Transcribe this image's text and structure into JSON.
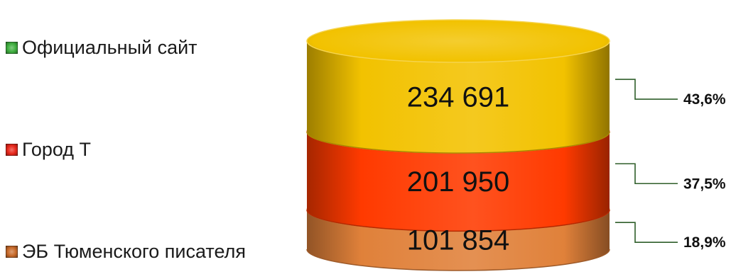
{
  "chart_data": {
    "type": "stacked-cylinder",
    "title": "",
    "series": [
      {
        "name": "ЭБ Тюменского писателя",
        "value": 101854,
        "value_label": "101 854",
        "percent_label": "18,9%",
        "color": "#e0813a"
      },
      {
        "name": "Город Т",
        "value": 201950,
        "value_label": "201 950",
        "percent_label": "37,5%",
        "color": "#ff3a00"
      },
      {
        "name": "Официальный сайт",
        "value": 234691,
        "value_label": "234 691",
        "percent_label": "43,6%",
        "color": "#f2c200"
      }
    ],
    "legend": {
      "placement": "left",
      "items": [
        {
          "label": "Официальный сайт",
          "color": "#3fae3f"
        },
        {
          "label": "Город Т",
          "color": "#e8281c"
        },
        {
          "label": "ЭБ Тюменского писателя",
          "color": "#c86a2a"
        }
      ]
    },
    "leader_color": "#2f5e2a"
  }
}
